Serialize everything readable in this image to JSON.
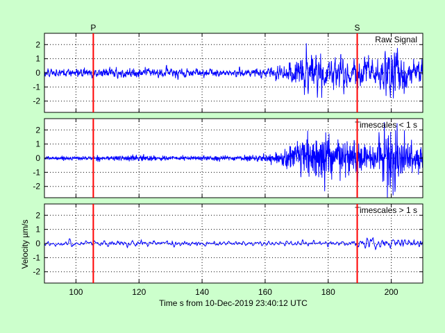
{
  "chart_data": {
    "type": "line",
    "xlabel": "Time s from 10-Dec-2019 23:40:12 UTC",
    "ylabel": "Velocity µm/s",
    "xlim": [
      90,
      210
    ],
    "ylim": [
      -2.8,
      2.8
    ],
    "x_ticks": [
      100,
      120,
      140,
      160,
      180,
      200
    ],
    "y_ticks": [
      2,
      1,
      0,
      -1,
      -2
    ],
    "grid": true,
    "line_color": "#0000ff",
    "marker_color": "#ff0000",
    "background_color": "#ccffcc",
    "plot_background_color": "#ffffff",
    "phase_markers": [
      {
        "label": "P",
        "x": 105.5
      },
      {
        "label": "S",
        "x": 189.2
      }
    ],
    "panels": [
      {
        "label": "Raw Signal",
        "x": [
          90,
          100,
          110,
          120,
          130,
          140,
          150,
          160,
          165,
          170,
          175,
          180,
          185,
          190,
          195,
          200,
          205,
          210
        ],
        "amplitude": [
          0.35,
          0.35,
          0.4,
          0.45,
          0.4,
          0.4,
          0.35,
          0.4,
          0.6,
          1.5,
          1.8,
          1.5,
          1.6,
          1.3,
          1.2,
          2.5,
          1.3,
          1.0
        ]
      },
      {
        "label": "Timescales < 1 s",
        "x": [
          90,
          100,
          110,
          120,
          130,
          140,
          150,
          160,
          165,
          170,
          175,
          180,
          185,
          190,
          195,
          200,
          205,
          210
        ],
        "amplitude": [
          0.1,
          0.12,
          0.15,
          0.2,
          0.15,
          0.15,
          0.15,
          0.2,
          0.4,
          1.1,
          1.5,
          1.3,
          1.2,
          1.0,
          0.9,
          2.4,
          1.0,
          0.8
        ]
      },
      {
        "label": "Timescales > 1 s",
        "x": [
          90,
          100,
          110,
          120,
          130,
          140,
          150,
          160,
          165,
          170,
          175,
          180,
          185,
          190,
          195,
          200,
          205,
          210
        ],
        "amplitude": [
          0.25,
          0.25,
          0.3,
          0.35,
          0.3,
          0.25,
          0.2,
          0.2,
          0.2,
          0.25,
          0.2,
          0.25,
          0.3,
          0.45,
          0.5,
          0.45,
          0.4,
          0.3
        ]
      }
    ]
  }
}
